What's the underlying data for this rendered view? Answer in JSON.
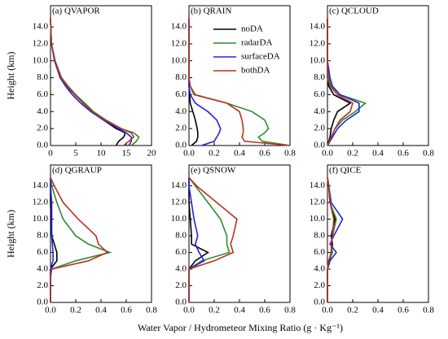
{
  "xlabel": "Water Vapor / Hydrometeor Mixing Ratio (g · Kg⁻¹)",
  "ylabel": "Height (km)",
  "ylim": [
    0,
    16.5
  ],
  "yticks": [
    {
      "value": 0,
      "label": "0.0"
    },
    {
      "value": 2,
      "label": "2.0"
    },
    {
      "value": 4,
      "label": "4.0"
    },
    {
      "value": 6,
      "label": "6.0"
    },
    {
      "value": 8,
      "label": "8.0"
    },
    {
      "value": 10,
      "label": "10.0"
    },
    {
      "value": 12,
      "label": "12.0"
    },
    {
      "value": 14,
      "label": "14.0"
    }
  ],
  "y": [
    0,
    0.5,
    1,
    1.5,
    2,
    3,
    4,
    5,
    6,
    7,
    8,
    10,
    12,
    14,
    15
  ],
  "series": [
    {
      "name": "noDA",
      "color": "#000000"
    },
    {
      "name": "radarDA",
      "color": "#2e8b2e"
    },
    {
      "name": "surfaceDA",
      "color": "#2222dd"
    },
    {
      "name": "bothDA",
      "color": "#b8321e"
    }
  ],
  "chart_data": [
    {
      "type": "line",
      "title": "(a) QVAPOR",
      "xlim": [
        0,
        20
      ],
      "xticks": [
        0,
        5,
        10,
        15,
        20
      ],
      "values": [
        [
          13,
          13.5,
          14.5,
          14.8,
          13,
          10.5,
          8.3,
          6.5,
          4.8,
          3.2,
          2,
          0.8,
          0.2,
          0.05,
          0.02
        ],
        [
          16,
          17,
          17.5,
          16.5,
          14,
          11,
          8.5,
          6.8,
          5,
          3.5,
          2.2,
          0.9,
          0.2,
          0.05,
          0.02
        ],
        [
          15.5,
          16,
          16,
          15,
          13.5,
          10.5,
          8,
          6,
          4.3,
          3,
          1.9,
          0.8,
          0.2,
          0.05,
          0.02
        ],
        [
          14.5,
          15.5,
          16.5,
          16,
          14,
          10.8,
          8.3,
          6.5,
          4.8,
          3.3,
          2.1,
          0.9,
          0.2,
          0.05,
          0.02
        ]
      ]
    },
    {
      "type": "line",
      "title": "(b) QRAIN",
      "xlim": [
        0,
        0.8
      ],
      "xticks": [
        {
          "value": 0,
          "label": "0.0"
        },
        0.2,
        0.4,
        0.6,
        0.8
      ],
      "legend": true,
      "values": [
        [
          0.02,
          0.06,
          0.07,
          0.07,
          0.065,
          0.05,
          0.03,
          0.01,
          0.005,
          0,
          0,
          0,
          0,
          0,
          0
        ],
        [
          0.8,
          0.58,
          0.55,
          0.6,
          0.63,
          0.6,
          0.5,
          0.3,
          0.05,
          0.01,
          0,
          0,
          0,
          0,
          0
        ],
        [
          0.1,
          0.2,
          0.22,
          0.24,
          0.25,
          0.22,
          0.15,
          0.05,
          0.01,
          0,
          0,
          0,
          0,
          0,
          0
        ],
        [
          0.8,
          0.44,
          0.42,
          0.43,
          0.43,
          0.42,
          0.4,
          0.3,
          0.04,
          0.01,
          0,
          0,
          0,
          0,
          0
        ]
      ]
    },
    {
      "type": "line",
      "title": "(c) QCLOUD",
      "xlim": [
        0,
        0.8
      ],
      "xticks": [
        {
          "value": 0,
          "label": "0.0"
        },
        0.2,
        0.4,
        0.6,
        0.8
      ],
      "values": [
        [
          0,
          0.01,
          0.02,
          0.025,
          0.03,
          0.05,
          0.08,
          0.18,
          0.05,
          0.01,
          0,
          0,
          0,
          0,
          0
        ],
        [
          0,
          0.02,
          0.03,
          0.045,
          0.06,
          0.12,
          0.22,
          0.3,
          0.1,
          0.03,
          0.01,
          0,
          0,
          0,
          0
        ],
        [
          0,
          0.02,
          0.04,
          0.06,
          0.08,
          0.15,
          0.25,
          0.25,
          0.1,
          0.04,
          0.02,
          0,
          0,
          0,
          0
        ],
        [
          0,
          0.015,
          0.03,
          0.045,
          0.06,
          0.1,
          0.18,
          0.2,
          0.08,
          0.02,
          0,
          0,
          0,
          0,
          0
        ]
      ]
    },
    {
      "type": "line",
      "title": "(d) QGRAUP",
      "xlim": [
        0,
        0.8
      ],
      "xticks": [
        {
          "value": 0,
          "label": "0.0"
        },
        0.2,
        0.4,
        0.6,
        0.8
      ],
      "values": [
        [
          0,
          0,
          0,
          0,
          0,
          0,
          0,
          0.05,
          0.05,
          0.03,
          0.01,
          0.005,
          0,
          0,
          0
        ],
        [
          0,
          0,
          0,
          0,
          0,
          0,
          0.01,
          0.2,
          0.47,
          0.3,
          0.2,
          0.1,
          0.05,
          0.01,
          0
        ],
        [
          0,
          0,
          0,
          0,
          0,
          0,
          0,
          0.02,
          0.02,
          0.015,
          0.01,
          0.01,
          0.01,
          0,
          0
        ],
        [
          0,
          0,
          0,
          0,
          0,
          0,
          0.01,
          0.3,
          0.45,
          0.38,
          0.36,
          0.22,
          0.1,
          0.03,
          0
        ]
      ]
    },
    {
      "type": "line",
      "title": "(e) QSNOW",
      "xlim": [
        0,
        0.8
      ],
      "xticks": [
        {
          "value": 0,
          "label": "0.0"
        },
        0.2,
        0.4,
        0.6,
        0.8
      ],
      "values": [
        [
          0,
          0,
          0,
          0,
          0,
          0,
          0,
          0.05,
          0.15,
          0.02,
          0.02,
          0.01,
          0,
          0,
          0
        ],
        [
          0,
          0,
          0,
          0,
          0,
          0,
          0,
          0.1,
          0.32,
          0.3,
          0.3,
          0.25,
          0.15,
          0.05,
          0
        ],
        [
          0,
          0,
          0,
          0,
          0,
          0,
          0,
          0.12,
          0.08,
          0.05,
          0.07,
          0.04,
          0.02,
          0,
          0
        ],
        [
          0,
          0,
          0,
          0,
          0,
          0,
          0,
          0.2,
          0.35,
          0.33,
          0.35,
          0.38,
          0.22,
          0.06,
          0
        ]
      ]
    },
    {
      "type": "line",
      "title": "(f) QICE",
      "xlim": [
        0,
        0.8
      ],
      "xticks": [
        {
          "value": 0,
          "label": "0.0"
        },
        0.2,
        0.4,
        0.6,
        0.8
      ],
      "values": [
        [
          0,
          0,
          0,
          0,
          0,
          0,
          0,
          0.02,
          0.03,
          0.04,
          0.03,
          0.06,
          0.02,
          0.01,
          0
        ],
        [
          0,
          0,
          0,
          0,
          0,
          0,
          0,
          0.01,
          0.04,
          0.03,
          0.04,
          0.07,
          0.02,
          0.01,
          0
        ],
        [
          0,
          0,
          0,
          0,
          0,
          0,
          0,
          0.02,
          0.07,
          0.02,
          0.05,
          0.12,
          0.03,
          0.01,
          0
        ],
        [
          0,
          0,
          0,
          0,
          0,
          0,
          0,
          0.01,
          0.03,
          0.03,
          0.04,
          0.05,
          0.02,
          0.01,
          0
        ]
      ]
    }
  ]
}
